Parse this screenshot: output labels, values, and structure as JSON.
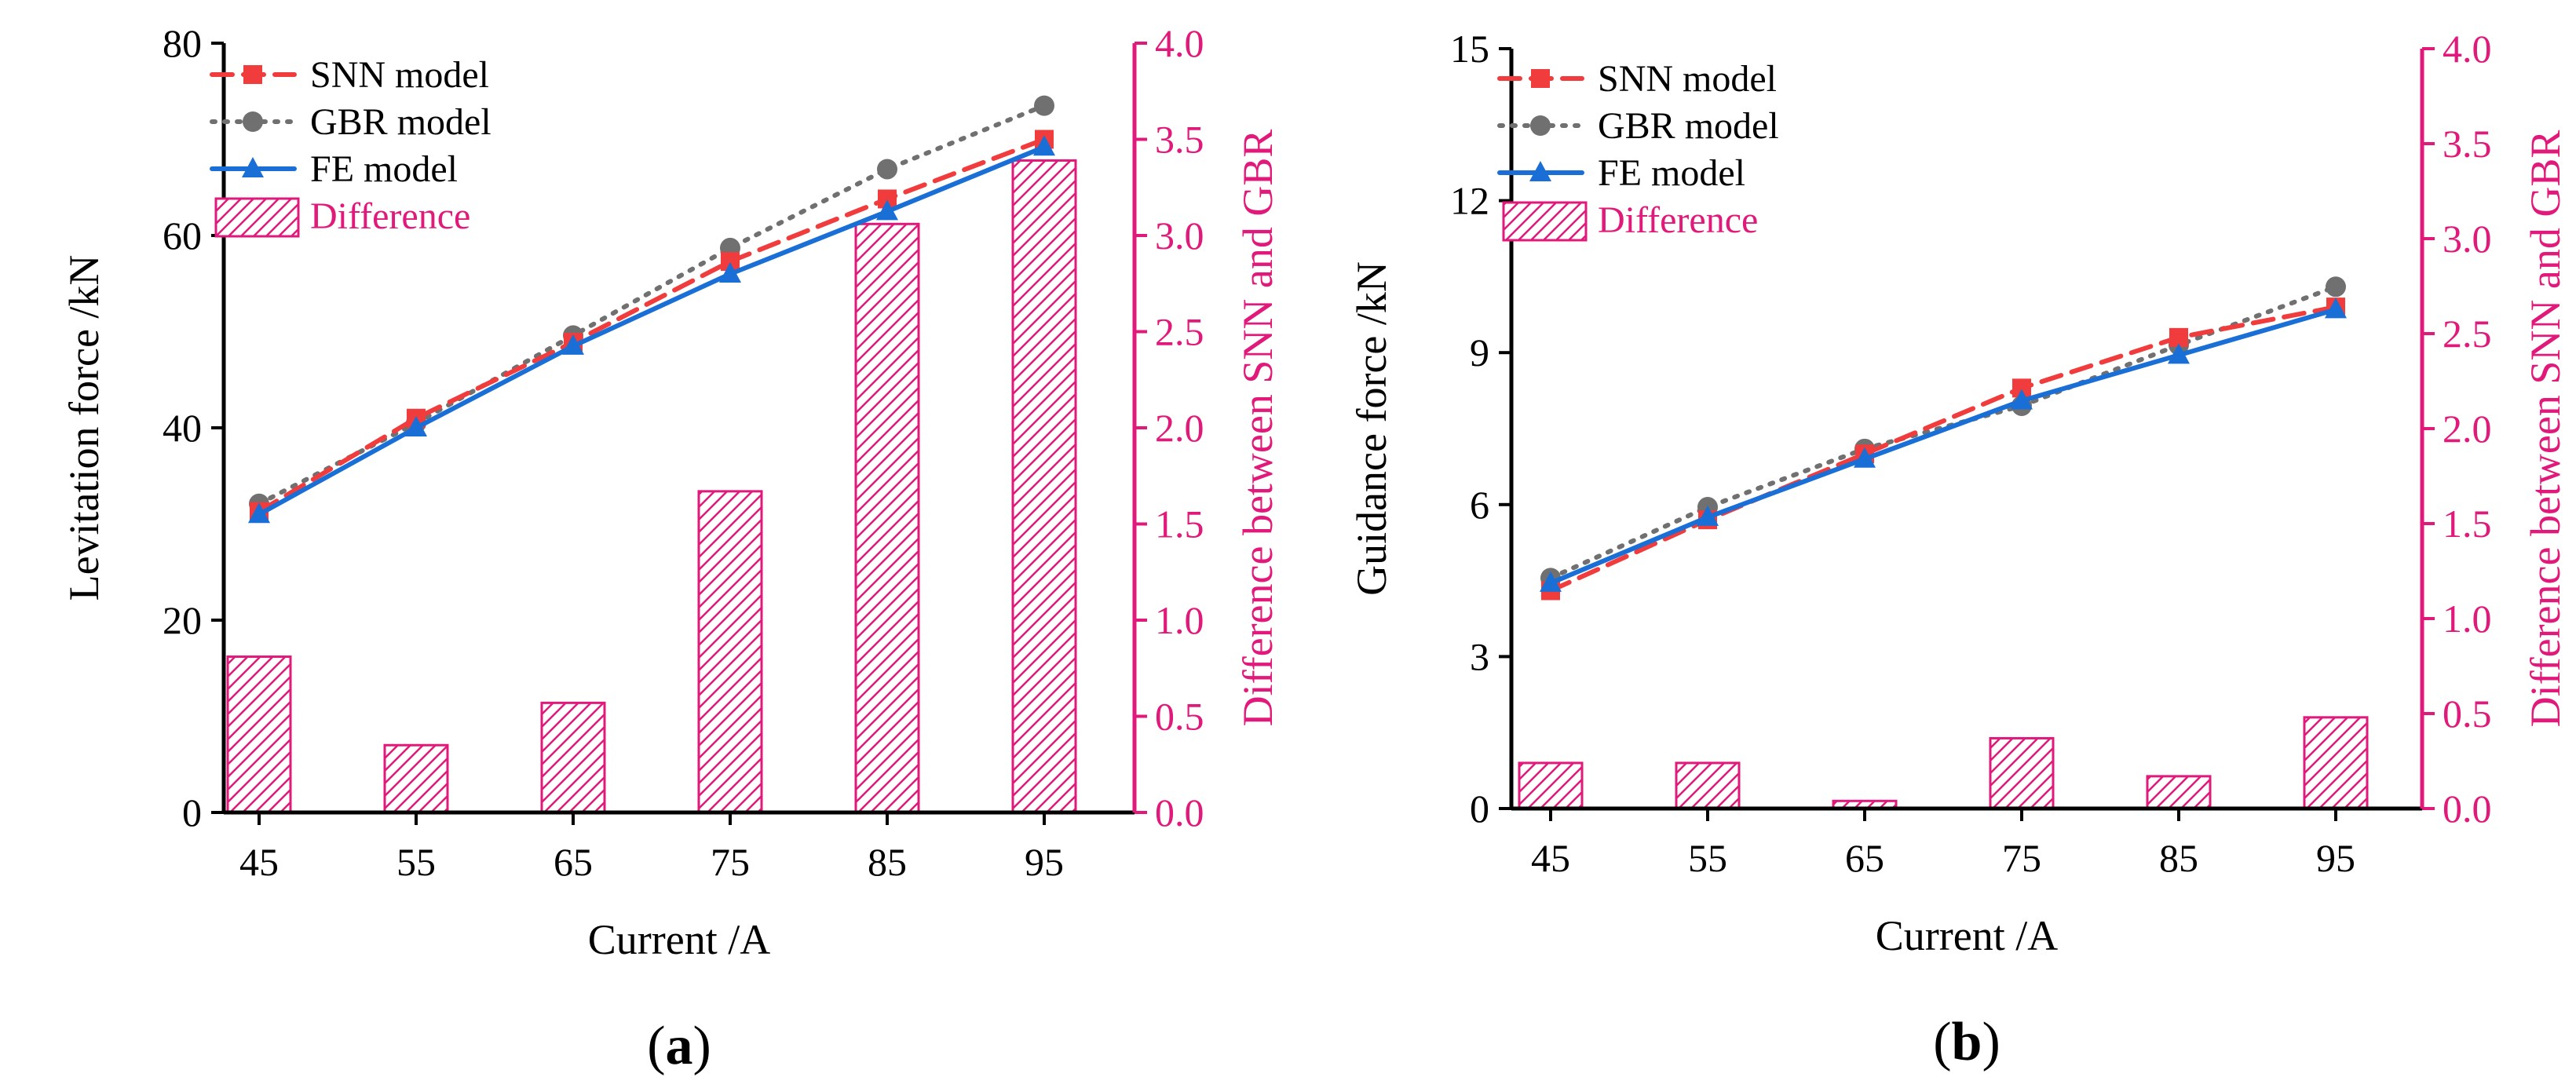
{
  "colors": {
    "snn": "#f03c3c",
    "gbr": "#707070",
    "fe": "#1a6fd6",
    "difference": "#e0197a",
    "axis": "#000000"
  },
  "chart_data": [
    {
      "type": "line+bar",
      "panel_label_open": "(",
      "panel_label_letter": "a",
      "panel_label_close": ")",
      "xlabel": "Current /A",
      "ylabel": "Levitation force /kN",
      "y2label": "Difference between SNN and GBR",
      "x": [
        45,
        55,
        65,
        75,
        85,
        95
      ],
      "xticks": [
        "45",
        "55",
        "65",
        "75",
        "85",
        "95"
      ],
      "ylim": [
        0,
        80
      ],
      "yticks": [
        "0",
        "20",
        "40",
        "60",
        "80"
      ],
      "y2lim": [
        0,
        4.0
      ],
      "y2ticks": [
        "0.0",
        "0.5",
        "1.0",
        "1.5",
        "2.0",
        "2.5",
        "3.0",
        "3.5",
        "4.0"
      ],
      "series": [
        {
          "name": "SNN model",
          "marker": "square",
          "style": "dashed",
          "values": [
            31.3,
            41.0,
            48.9,
            57.3,
            63.8,
            70.0
          ]
        },
        {
          "name": "GBR model",
          "marker": "circle",
          "style": "dotted",
          "values": [
            32.1,
            40.5,
            49.6,
            58.7,
            66.9,
            73.5
          ]
        },
        {
          "name": "FE model",
          "marker": "triangle",
          "style": "solid",
          "values": [
            31.0,
            40.0,
            48.5,
            56.0,
            62.5,
            69.2
          ]
        }
      ],
      "bars": {
        "name": "Difference",
        "values": [
          0.81,
          0.35,
          0.57,
          1.67,
          3.06,
          3.39
        ]
      },
      "legend": [
        "SNN model",
        "GBR model",
        "FE model",
        "Difference"
      ]
    },
    {
      "type": "line+bar",
      "panel_label_open": "(",
      "panel_label_letter": "b",
      "panel_label_close": ")",
      "xlabel": "Current /A",
      "ylabel": "Guidance force /kN",
      "y2label": "Difference between SNN and GBR",
      "x": [
        45,
        55,
        65,
        75,
        85,
        95
      ],
      "xticks": [
        "45",
        "55",
        "65",
        "75",
        "85",
        "95"
      ],
      "ylim": [
        0,
        15
      ],
      "yticks": [
        "0",
        "3",
        "6",
        "9",
        "12",
        "15"
      ],
      "y2lim": [
        0,
        4.0
      ],
      "y2ticks": [
        "0.0",
        "0.5",
        "1.0",
        "1.5",
        "2.0",
        "2.5",
        "3.0",
        "3.5",
        "4.0"
      ],
      "series": [
        {
          "name": "SNN model",
          "marker": "square",
          "style": "dashed",
          "values": [
            4.3,
            5.7,
            7.0,
            8.3,
            9.3,
            9.9
          ]
        },
        {
          "name": "GBR model",
          "marker": "circle",
          "style": "dotted",
          "values": [
            4.55,
            5.95,
            7.1,
            7.95,
            9.15,
            10.3
          ]
        },
        {
          "name": "FE model",
          "marker": "triangle",
          "style": "solid",
          "values": [
            4.45,
            5.75,
            6.9,
            8.05,
            8.95,
            9.85
          ]
        }
      ],
      "bars": {
        "name": "Difference",
        "values": [
          0.24,
          0.24,
          0.04,
          0.37,
          0.17,
          0.48
        ]
      },
      "legend": [
        "SNN model",
        "GBR model",
        "FE model",
        "Difference"
      ]
    }
  ]
}
